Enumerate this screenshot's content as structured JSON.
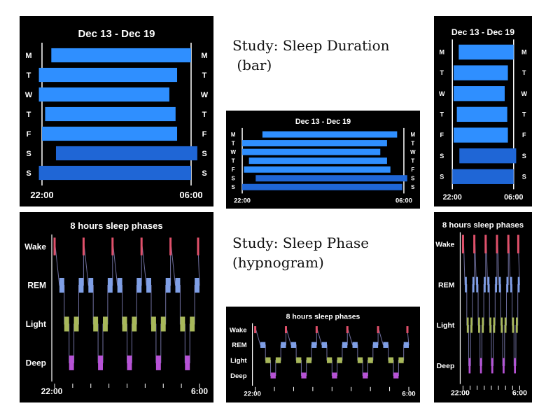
{
  "studies": {
    "duration_title": "Study: Sleep Duration",
    "duration_subtitle": " (bar)",
    "phase_title": "Study: Sleep Phase",
    "phase_subtitle": "(hypnogram)"
  },
  "colors": {
    "bar_light": "#2f8fff",
    "bar_dark": "#1f66d6",
    "wake": "#e0506a",
    "rem": "#7f9fe6",
    "light": "#a8b85a",
    "deep": "#b752d6",
    "panel_bg": "#000000",
    "text": "#ffffff"
  },
  "chart_data": [
    {
      "id": "duration-large",
      "type": "bar",
      "title": "Dec 13 - Dec 19",
      "categories": [
        "M",
        "T",
        "W",
        "T",
        "F",
        "S",
        "S"
      ],
      "x_tick_labels": [
        "22:00",
        "06:00"
      ],
      "xlim": [
        "22:00",
        "06:00"
      ],
      "bars": [
        {
          "start": "22:30",
          "end": "06:00",
          "shade": "light"
        },
        {
          "start": "21:50",
          "end": "05:15",
          "shade": "light"
        },
        {
          "start": "21:50",
          "end": "04:50",
          "shade": "light"
        },
        {
          "start": "22:10",
          "end": "05:10",
          "shade": "light"
        },
        {
          "start": "22:00",
          "end": "05:15",
          "shade": "light"
        },
        {
          "start": "22:45",
          "end": "06:20",
          "shade": "dark"
        },
        {
          "start": "21:50",
          "end": "06:00",
          "shade": "dark"
        }
      ]
    },
    {
      "id": "duration-wide",
      "type": "bar",
      "title": "Dec 13 - Dec 19",
      "categories": [
        "M",
        "T",
        "W",
        "T",
        "F",
        "S",
        "S"
      ],
      "x_tick_labels": [
        "22:00",
        "06:00"
      ],
      "xlim": [
        "22:00",
        "06:00"
      ],
      "bars": [
        {
          "start": "23:00",
          "end": "05:40",
          "shade": "light"
        },
        {
          "start": "22:00",
          "end": "05:10",
          "shade": "light"
        },
        {
          "start": "22:00",
          "end": "04:50",
          "shade": "light"
        },
        {
          "start": "22:20",
          "end": "05:10",
          "shade": "light"
        },
        {
          "start": "22:05",
          "end": "05:20",
          "shade": "light"
        },
        {
          "start": "22:40",
          "end": "06:10",
          "shade": "dark"
        },
        {
          "start": "22:00",
          "end": "05:55",
          "shade": "dark"
        }
      ]
    },
    {
      "id": "duration-narrow",
      "type": "bar",
      "title": "Dec 13 - Dec 19",
      "categories": [
        "M",
        "T",
        "W",
        "T",
        "F",
        "S",
        "S"
      ],
      "x_tick_labels": [
        "22:00",
        "06:00"
      ],
      "xlim": [
        "22:00",
        "06:00"
      ],
      "bars": [
        {
          "start": "22:50",
          "end": "06:00",
          "shade": "light"
        },
        {
          "start": "22:10",
          "end": "05:15",
          "shade": "light"
        },
        {
          "start": "22:10",
          "end": "04:50",
          "shade": "light"
        },
        {
          "start": "22:35",
          "end": "05:10",
          "shade": "light"
        },
        {
          "start": "22:10",
          "end": "05:15",
          "shade": "light"
        },
        {
          "start": "22:55",
          "end": "06:20",
          "shade": "dark"
        },
        {
          "start": "22:00",
          "end": "06:00",
          "shade": "dark"
        }
      ]
    },
    {
      "id": "phases-large",
      "type": "line",
      "title": "8 hours sleep phases",
      "levels": [
        "Wake",
        "REM",
        "Light",
        "Deep"
      ],
      "x_tick_labels": [
        "22:00",
        "6:00"
      ],
      "xlim": [
        "22:00",
        "06:00"
      ],
      "cycles": 5,
      "cycle_pattern": [
        "Wake",
        "REM",
        "Light",
        "Deep",
        "Light",
        "REM"
      ]
    },
    {
      "id": "phases-wide",
      "type": "line",
      "title": "8 hours sleep phases",
      "levels": [
        "Wake",
        "REM",
        "Light",
        "Deep"
      ],
      "x_tick_labels": [
        "22:00",
        "6:00"
      ],
      "xlim": [
        "22:00",
        "06:00"
      ],
      "cycles": 5,
      "cycle_pattern": [
        "Wake",
        "REM",
        "Light",
        "Deep",
        "Light",
        "REM"
      ]
    },
    {
      "id": "phases-narrow",
      "type": "line",
      "title": "8 hours sleep phases",
      "levels": [
        "Wake",
        "REM",
        "Light",
        "Deep"
      ],
      "x_tick_labels": [
        "22:00",
        "6:00"
      ],
      "xlim": [
        "22:00",
        "06:00"
      ],
      "cycles": 5,
      "cycle_pattern": [
        "Wake",
        "REM",
        "Light",
        "Deep",
        "Light",
        "REM"
      ]
    }
  ]
}
